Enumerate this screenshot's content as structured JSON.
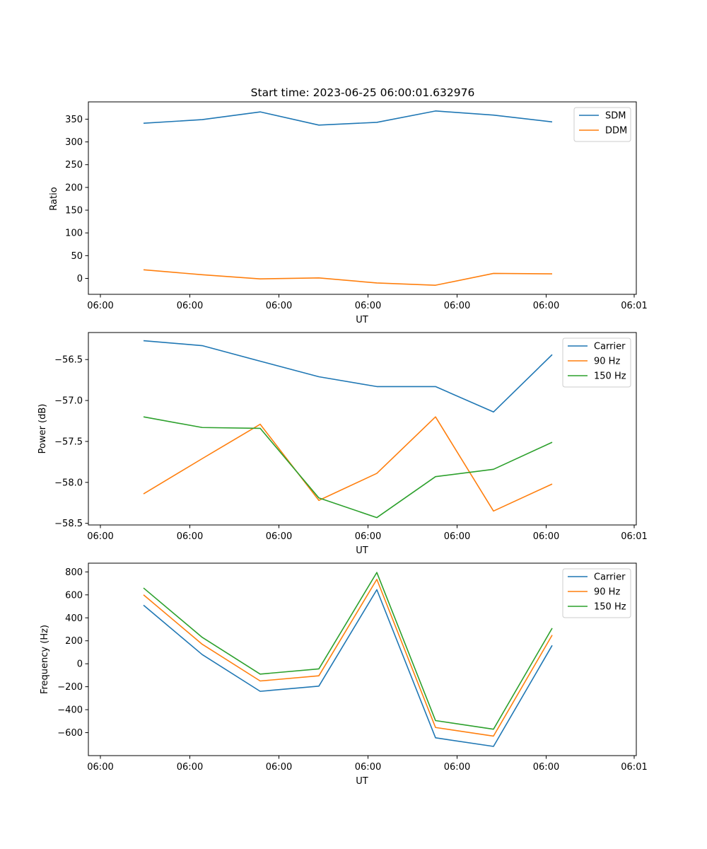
{
  "chart_data": [
    {
      "type": "line",
      "title": "Start time: 2023-06-25 06:00:01.632976",
      "xlabel": "UT",
      "ylabel": "Ratio",
      "x_tick_labels": [
        "06:00",
        "06:00",
        "06:00",
        "06:00",
        "06:00",
        "06:00",
        "06:01"
      ],
      "y_ticks": [
        0,
        50,
        100,
        150,
        200,
        250,
        300,
        350
      ],
      "y_tick_labels": [
        "0",
        "50",
        "100",
        "150",
        "200",
        "250",
        "300",
        "350"
      ],
      "ylim": [
        -35,
        388
      ],
      "legend_position": "top-right",
      "colors": {
        "SDM": "#1f77b4",
        "DDM": "#ff7f0e"
      },
      "series": [
        {
          "name": "SDM",
          "color": "#1f77b4",
          "values": [
            341,
            349,
            366,
            337,
            343,
            368,
            359,
            344
          ]
        },
        {
          "name": "DDM",
          "color": "#ff7f0e",
          "values": [
            19,
            8,
            -1,
            1,
            -10,
            -15,
            11,
            10
          ]
        }
      ]
    },
    {
      "type": "line",
      "title": "",
      "xlabel": "UT",
      "ylabel": "Power (dB)",
      "x_tick_labels": [
        "06:00",
        "06:00",
        "06:00",
        "06:00",
        "06:00",
        "06:00",
        "06:01"
      ],
      "y_ticks": [
        -58.5,
        -58.0,
        -57.5,
        -57.0,
        -56.5
      ],
      "y_tick_labels": [
        "−58.5",
        "−58.0",
        "−57.5",
        "−57.0",
        "−56.5"
      ],
      "ylim": [
        -58.52,
        -56.17
      ],
      "legend_position": "top-right",
      "colors": {
        "Carrier": "#1f77b4",
        "90 Hz": "#ff7f0e",
        "150 Hz": "#2ca02c"
      },
      "series": [
        {
          "name": "Carrier",
          "color": "#1f77b4",
          "values": [
            -56.27,
            -56.33,
            -56.52,
            -56.71,
            -56.83,
            -56.83,
            -57.14,
            -56.44
          ]
        },
        {
          "name": "90 Hz",
          "color": "#ff7f0e",
          "values": [
            -58.14,
            -57.71,
            -57.29,
            -58.22,
            -57.89,
            -57.2,
            -58.35,
            -58.02
          ]
        },
        {
          "name": "150 Hz",
          "color": "#2ca02c",
          "values": [
            -57.2,
            -57.33,
            -57.34,
            -58.19,
            -58.43,
            -57.93,
            -57.84,
            -57.51
          ]
        }
      ]
    },
    {
      "type": "line",
      "title": "",
      "xlabel": "UT",
      "ylabel": "Frequency (Hz)",
      "x_tick_labels": [
        "06:00",
        "06:00",
        "06:00",
        "06:00",
        "06:00",
        "06:00",
        "06:01"
      ],
      "y_ticks": [
        -600,
        -400,
        -200,
        0,
        200,
        400,
        600,
        800
      ],
      "y_tick_labels": [
        "−600",
        "−400",
        "−200",
        "0",
        "200",
        "400",
        "600",
        "800"
      ],
      "ylim": [
        -800,
        876
      ],
      "legend_position": "top-right",
      "colors": {
        "Carrier": "#1f77b4",
        "90 Hz": "#ff7f0e",
        "150 Hz": "#2ca02c"
      },
      "series": [
        {
          "name": "Carrier",
          "color": "#1f77b4",
          "values": [
            510,
            80,
            -240,
            -195,
            645,
            -645,
            -720,
            160
          ]
        },
        {
          "name": "90 Hz",
          "color": "#ff7f0e",
          "values": [
            600,
            170,
            -150,
            -105,
            735,
            -555,
            -630,
            250
          ]
        },
        {
          "name": "150 Hz",
          "color": "#2ca02c",
          "values": [
            660,
            230,
            -90,
            -45,
            795,
            -495,
            -570,
            310
          ]
        }
      ]
    }
  ]
}
